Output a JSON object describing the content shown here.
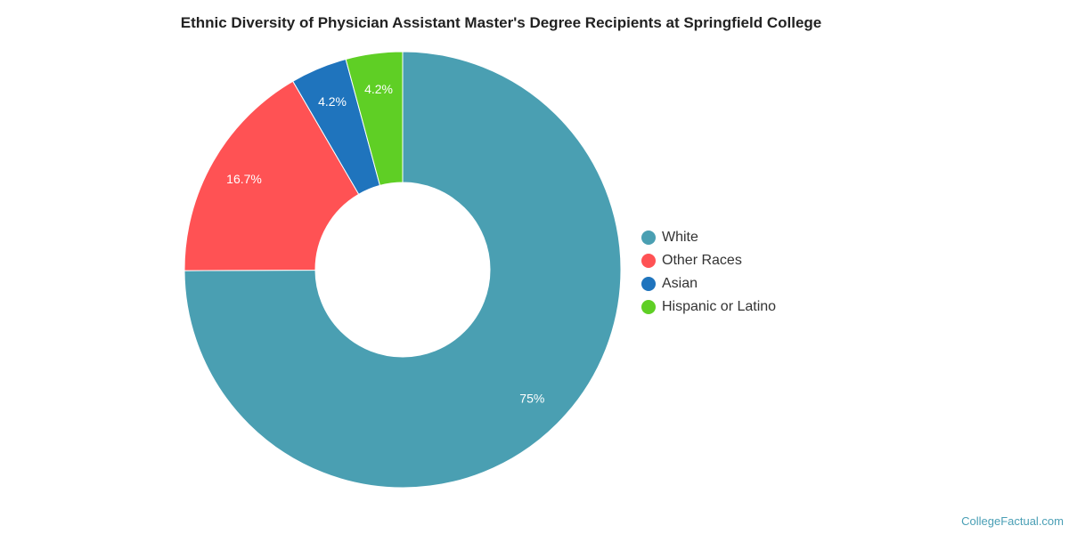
{
  "chart_data": {
    "type": "pie",
    "title": "Ethnic Diversity of Physician Assistant Master's Degree Recipients at Springfield College",
    "categories": [
      "White",
      "Other Races",
      "Asian",
      "Hispanic or Latino"
    ],
    "values": [
      75,
      16.7,
      4.2,
      4.2
    ],
    "value_labels": [
      "75%",
      "16.7%",
      "4.2%",
      "4.2%"
    ],
    "colors": [
      "#4a9fb2",
      "#ff5254",
      "#1f74bd",
      "#5fcf25"
    ],
    "legend_position": "right"
  },
  "footer": {
    "credit": "CollegeFactual.com"
  }
}
